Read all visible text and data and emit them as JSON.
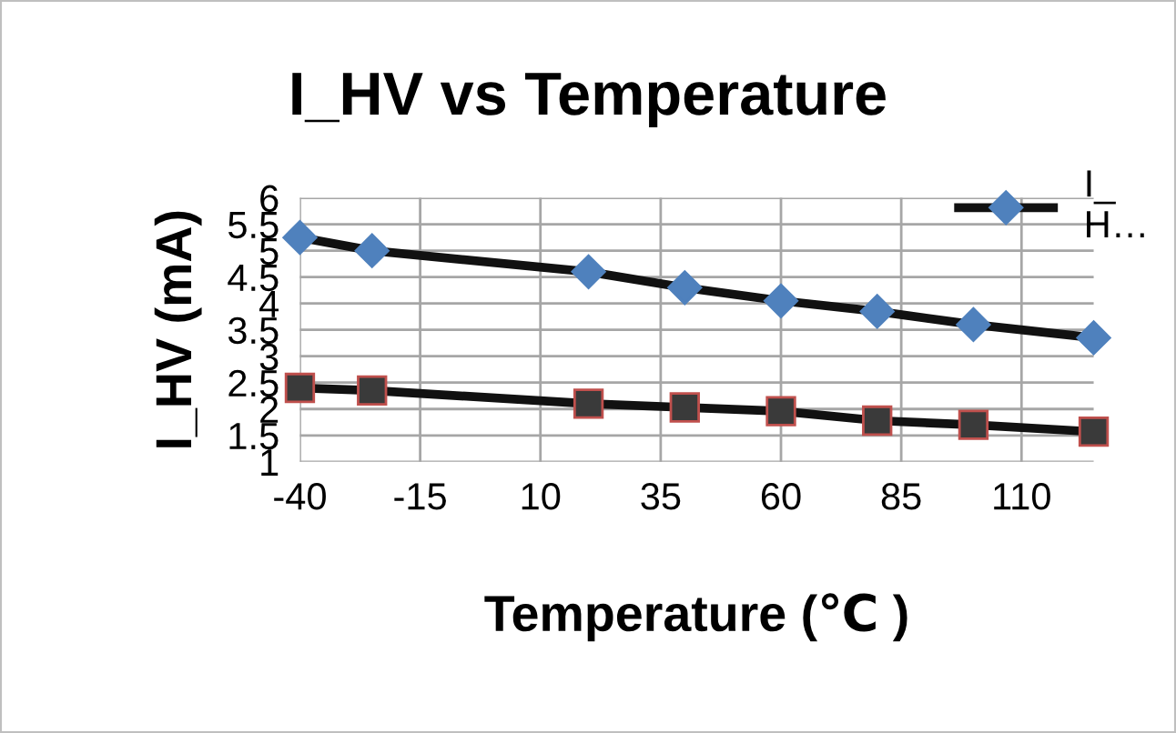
{
  "chart_data": {
    "type": "line",
    "title": "I_HV vs Temperature",
    "xlabel": "Temperature (℃ )",
    "ylabel": "I_HV (mA)",
    "x": [
      -40,
      -25,
      20,
      40,
      60,
      80,
      100,
      125
    ],
    "series": [
      {
        "name": "I_\nH…",
        "color": "#4f81bd",
        "marker": "diamond",
        "values": [
          5.25,
          5.0,
          4.6,
          4.3,
          4.05,
          3.85,
          3.6,
          3.35
        ]
      },
      {
        "color": "#3a3a3a",
        "marker": "square",
        "values": [
          2.4,
          2.35,
          2.1,
          2.03,
          1.96,
          1.78,
          1.7,
          1.57
        ]
      }
    ],
    "xlim": [
      -40,
      125
    ],
    "xticks": [
      -40,
      -15,
      10,
      35,
      60,
      85,
      110
    ],
    "ylim": [
      1,
      6
    ],
    "yticks": [
      1,
      1.5,
      2,
      2.5,
      3,
      3.5,
      4,
      4.5,
      5,
      5.5,
      6
    ],
    "grid": true,
    "legend": "top right"
  }
}
